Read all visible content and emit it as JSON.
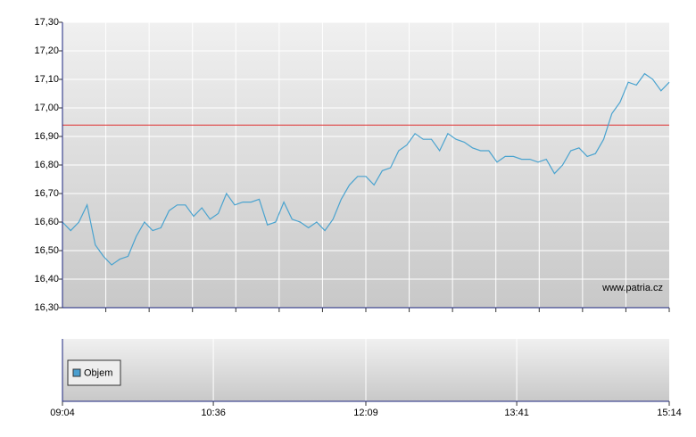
{
  "chart_data": [
    {
      "type": "line",
      "x": [
        544,
        549,
        554,
        559,
        564,
        569,
        574,
        579,
        584,
        589,
        594,
        599,
        604,
        609,
        614,
        619,
        624,
        629,
        634,
        639,
        644,
        649,
        654,
        659,
        664,
        669,
        674,
        679,
        684,
        689,
        694,
        699,
        704,
        709,
        714,
        719,
        724,
        729,
        734,
        739,
        744,
        749,
        754,
        759,
        764,
        769,
        774,
        779,
        784,
        789,
        794,
        799,
        804,
        809,
        814,
        819,
        824,
        829,
        834,
        839,
        844,
        849,
        854,
        859,
        864,
        869,
        874,
        879,
        884,
        889,
        894,
        899,
        904,
        909,
        914
      ],
      "values": [
        16.6,
        16.57,
        16.6,
        16.66,
        16.52,
        16.48,
        16.45,
        16.47,
        16.48,
        16.55,
        16.6,
        16.57,
        16.58,
        16.64,
        16.66,
        16.66,
        16.62,
        16.65,
        16.61,
        16.63,
        16.7,
        16.66,
        16.67,
        16.67,
        16.68,
        16.59,
        16.6,
        16.67,
        16.61,
        16.6,
        16.58,
        16.6,
        16.57,
        16.61,
        16.68,
        16.73,
        16.76,
        16.76,
        16.73,
        16.78,
        16.79,
        16.85,
        16.87,
        16.91,
        16.89,
        16.89,
        16.85,
        16.91,
        16.89,
        16.88,
        16.86,
        16.85,
        16.85,
        16.81,
        16.83,
        16.83,
        16.82,
        16.82,
        16.81,
        16.82,
        16.77,
        16.8,
        16.85,
        16.86,
        16.83,
        16.84,
        16.89,
        16.98,
        17.02,
        17.09,
        17.08,
        17.12,
        17.1,
        17.06,
        17.09
      ],
      "color": "#4aa3cf",
      "xlim": [
        544,
        914
      ],
      "ylim": [
        16.3,
        17.3
      ],
      "yticks": [
        {
          "value": 16.3,
          "label": "16,30"
        },
        {
          "value": 16.4,
          "label": "16,40"
        },
        {
          "value": 16.5,
          "label": "16,50"
        },
        {
          "value": 16.6,
          "label": "16,60"
        },
        {
          "value": 16.7,
          "label": "16,70"
        },
        {
          "value": 16.8,
          "label": "16,80"
        },
        {
          "value": 16.9,
          "label": "16,90"
        },
        {
          "value": 17.0,
          "label": "17,00"
        },
        {
          "value": 17.1,
          "label": "17,10"
        },
        {
          "value": 17.2,
          "label": "17,20"
        },
        {
          "value": 17.3,
          "label": "17,30"
        }
      ],
      "grid": true,
      "reference_line": {
        "value": 16.94,
        "color": "#e03030"
      },
      "annotation": "www.patria.cz"
    },
    {
      "type": "bar",
      "series": [
        {
          "name": "Objem",
          "color": "#4a9fd0",
          "values": []
        }
      ],
      "xlim": [
        544,
        914
      ],
      "xticks": [
        {
          "value": 544,
          "label": "09:04"
        },
        {
          "value": 636,
          "label": "10:36"
        },
        {
          "value": 729,
          "label": "12:09"
        },
        {
          "value": 821,
          "label": "13:41"
        },
        {
          "value": 914,
          "label": "15:14"
        }
      ],
      "grid": true,
      "legend": "upper left"
    }
  ]
}
